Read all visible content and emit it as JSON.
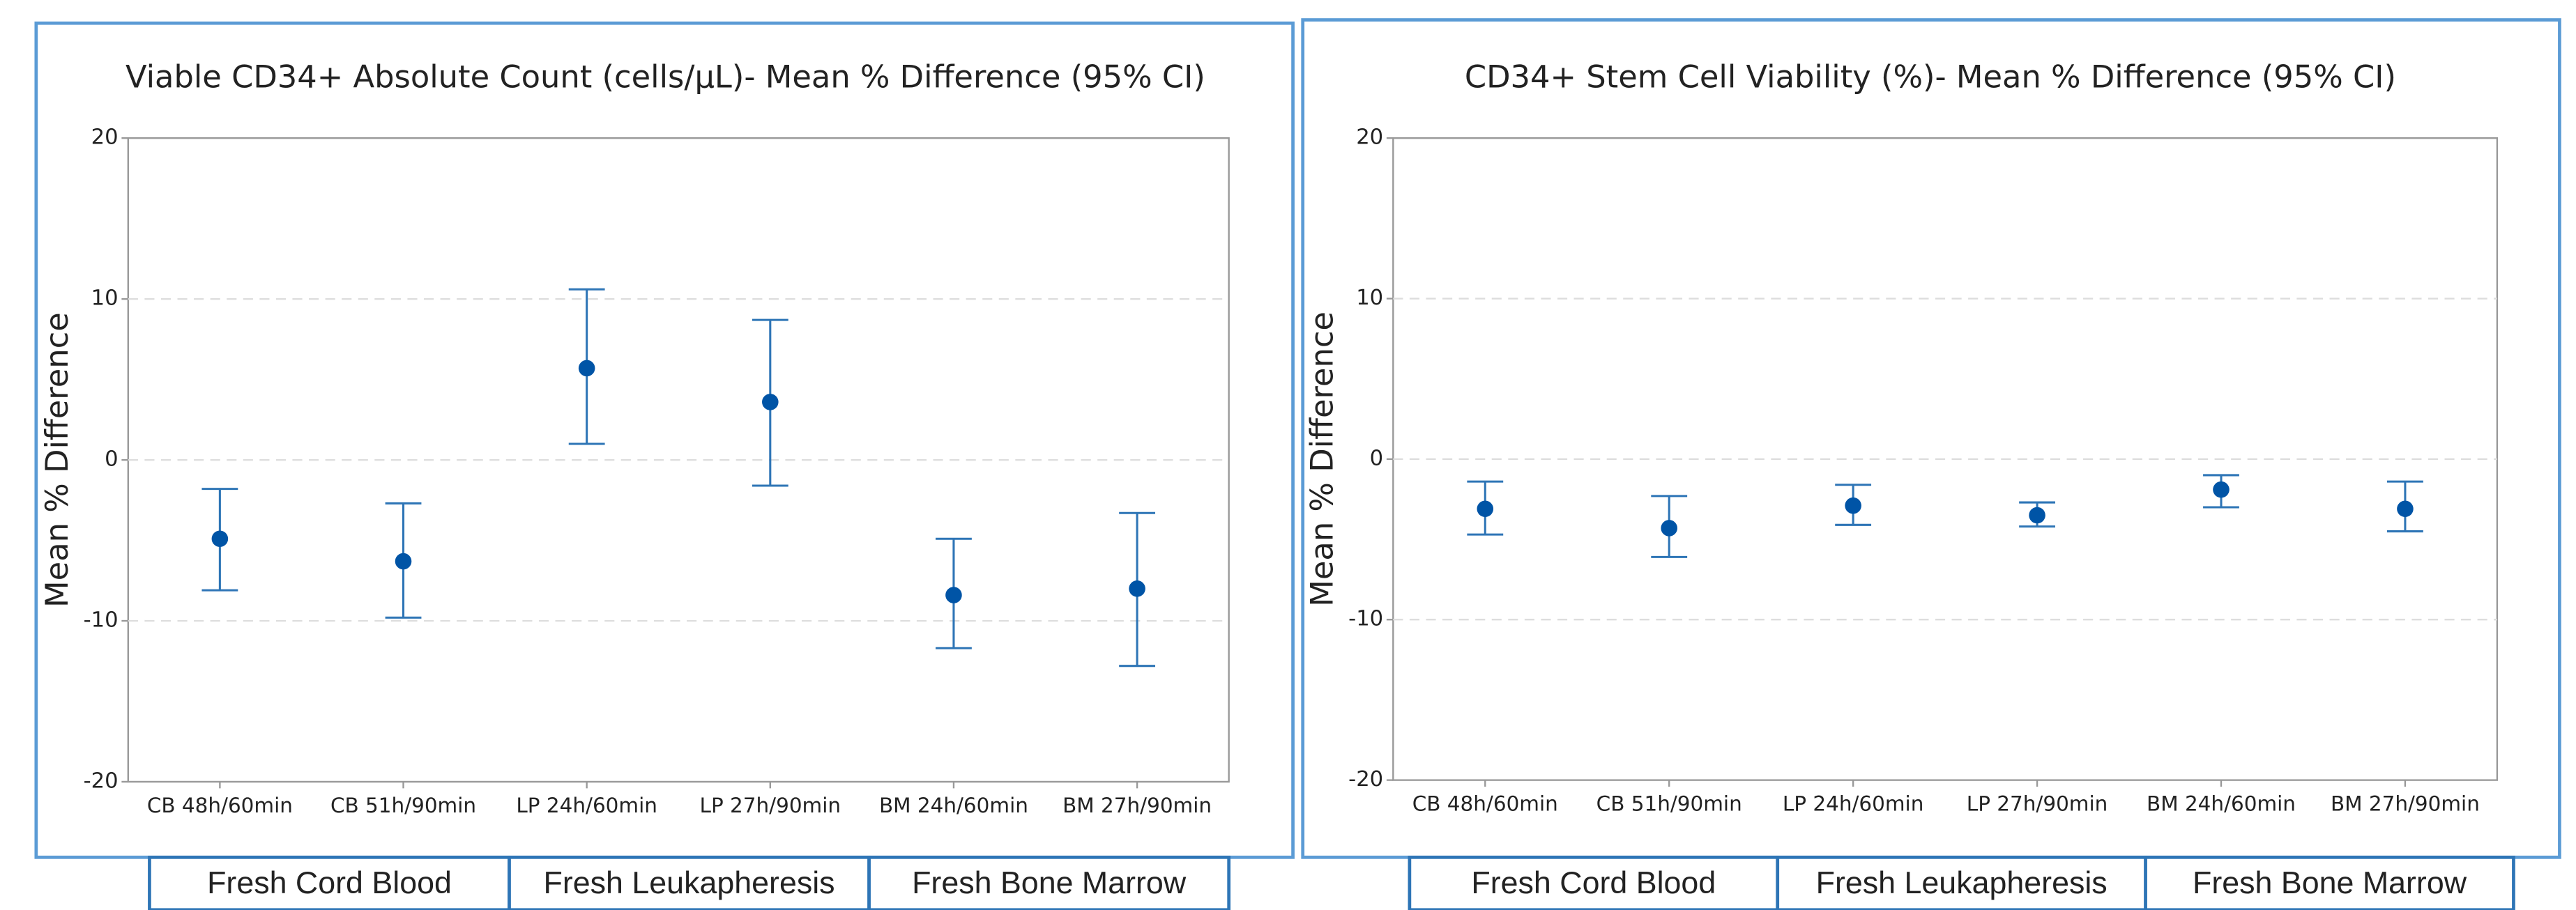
{
  "chart_data": [
    {
      "type": "errorbar",
      "title": "Viable CD34+ Absolute Count (cells/µL)- Mean % Difference (95% CI)",
      "y_label": "Mean % Difference",
      "categories": [
        "CB 48h/60min",
        "CB 51h/90min",
        "LP 24h/60min",
        "LP 27h/90min",
        "BM 24h/60min",
        "BM 27h/90min"
      ],
      "values": [
        -4.9,
        -6.3,
        5.7,
        3.6,
        -8.4,
        -8.0
      ],
      "lower": [
        -8.1,
        -9.8,
        1.0,
        -1.6,
        -11.7,
        -12.8
      ],
      "upper": [
        -1.8,
        -2.7,
        10.6,
        8.7,
        -4.9,
        -3.3
      ],
      "groups": [
        "Fresh Cord Blood",
        "Fresh Leukapheresis",
        "Fresh Bone Marrow"
      ],
      "color": "#0054a6",
      "bar_color": "#2e75b6",
      "ylim": [
        -20,
        20
      ],
      "yticks": [
        -20,
        -10,
        0,
        10,
        20
      ],
      "grid": true
    },
    {
      "type": "errorbar",
      "title": "CD34+ Stem Cell Viability (%)- Mean % Difference (95% CI)",
      "y_label": "Mean % Difference",
      "categories": [
        "CB 48h/60min",
        "CB 51h/90min",
        "LP 24h/60min",
        "LP 27h/90min",
        "BM 24h/60min",
        "BM 27h/90min"
      ],
      "values": [
        -3.1,
        -4.3,
        -2.9,
        -3.5,
        -1.9,
        -3.1
      ],
      "lower": [
        -4.7,
        -6.1,
        -4.1,
        -4.2,
        -3.0,
        -4.5
      ],
      "upper": [
        -1.4,
        -2.3,
        -1.6,
        -2.7,
        -1.0,
        -1.4
      ],
      "groups": [
        "Fresh Cord Blood",
        "Fresh Leukapheresis",
        "Fresh Bone Marrow"
      ],
      "color": "#0054a6",
      "bar_color": "#2e75b6",
      "ylim": [
        -20,
        20
      ],
      "yticks": [
        -20,
        -10,
        0,
        10,
        20
      ],
      "grid": true
    }
  ]
}
